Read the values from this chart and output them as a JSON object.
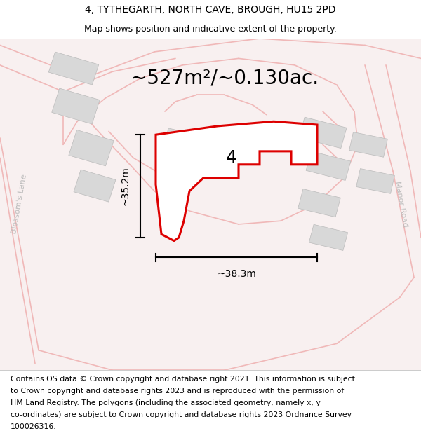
{
  "title": "4, TYTHEGARTH, NORTH CAVE, BROUGH, HU15 2PD",
  "subtitle": "Map shows position and indicative extent of the property.",
  "area_text": "~527m²/~0.130ac.",
  "width_label": "~38.3m",
  "height_label": "~35.2m",
  "property_number": "4",
  "footer_lines": [
    "Contains OS data © Crown copyright and database right 2021. This information is subject",
    "to Crown copyright and database rights 2023 and is reproduced with the permission of",
    "HM Land Registry. The polygons (including the associated geometry, namely x, y",
    "co-ordinates) are subject to Crown copyright and database rights 2023 Ordnance Survey",
    "100026316."
  ],
  "bg_color": "#ffffff",
  "map_bg_color": "#f8f0f0",
  "property_fill": "#ffffff",
  "property_edge_color": "#dd0000",
  "building_fill": "#d8d8d8",
  "road_color": "#f0b8b8",
  "dim_line_color": "#000000",
  "title_fontsize": 10,
  "subtitle_fontsize": 9,
  "area_fontsize": 20,
  "label_fontsize": 10,
  "number_fontsize": 18,
  "footer_fontsize": 7.8,
  "road_label_color": "#bbbbbb",
  "road_label_fontsize": 8
}
